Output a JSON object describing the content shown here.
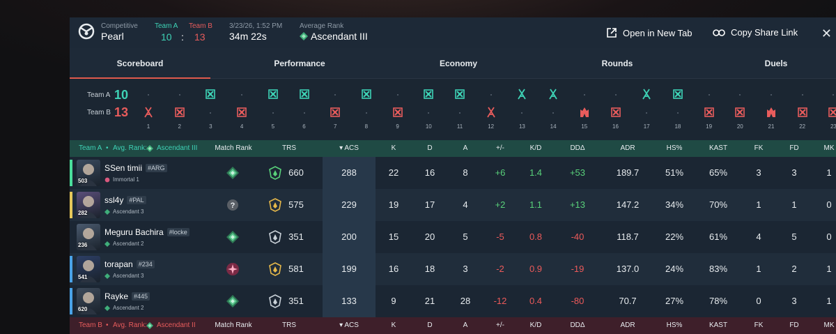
{
  "header": {
    "mode_label": "Competitive",
    "map_name": "Pearl",
    "team_a_label": "Team A",
    "team_b_label": "Team B",
    "team_a_score": "10",
    "colon": ":",
    "team_b_score": "13",
    "datetime": "3/23/26, 1:52 PM",
    "duration": "34m 22s",
    "avg_rank_label": "Average Rank",
    "avg_rank": "Ascendant III",
    "open_tab": "Open in New Tab",
    "copy_link": "Copy Share Link",
    "close": "✕"
  },
  "tabs": [
    "Scoreboard",
    "Performance",
    "Economy",
    "Rounds",
    "Duels"
  ],
  "active_tab": "Scoreboard",
  "rounds": {
    "team_a_label": "Team A",
    "team_b_label": "Team B",
    "team_a_score": "10",
    "team_b_score": "13",
    "winners": [
      "B",
      "B",
      "A",
      "B",
      "A",
      "A",
      "B",
      "A",
      "B",
      "A",
      "A",
      "B",
      "A",
      "A",
      "B",
      "B",
      "A",
      "A",
      "B",
      "B",
      "B",
      "B",
      "B"
    ],
    "win_types": [
      "defuse",
      "elim",
      "elim",
      "elim",
      "elim",
      "elim",
      "elim",
      "elim",
      "elim",
      "elim",
      "elim",
      "defuse",
      "defuse",
      "defuse",
      "spike",
      "elim",
      "defuse",
      "elim",
      "elim",
      "elim",
      "spike",
      "elim",
      "elim"
    ],
    "numbers": [
      "1",
      "2",
      "3",
      "4",
      "5",
      "6",
      "7",
      "8",
      "9",
      "10",
      "11",
      "12",
      "13",
      "14",
      "15",
      "16",
      "17",
      "18",
      "19",
      "20",
      "21",
      "22",
      "23"
    ]
  },
  "table": {
    "team_a_header": {
      "team": "Team A",
      "sep": "•",
      "avg_label": "Avg. Rank:",
      "avg_rank": "Ascendant III"
    },
    "team_b_header": {
      "team": "Team B",
      "sep": "•",
      "avg_label": "Avg. Rank:",
      "avg_rank": "Ascendant II"
    },
    "columns": [
      "Match Rank",
      "TRS",
      "ACS",
      "K",
      "D",
      "A",
      "+/-",
      "K/D",
      "DDΔ",
      "ADR",
      "HS%",
      "KAST",
      "FK",
      "FD",
      "MK"
    ],
    "sort_indicator": "▾",
    "players": [
      {
        "name": "SSen timii",
        "tag": "#ARG",
        "level": "503",
        "rank": "Immortal 1",
        "trs": "660",
        "acs": "288",
        "k": "22",
        "d": "16",
        "a": "8",
        "pm": "+6",
        "kd": "1.4",
        "dd": "+53",
        "adr": "189.7",
        "hs": "51%",
        "kast": "65%",
        "fk": "3",
        "fd": "3",
        "mk": "1",
        "stripe": "#4ade9c",
        "match_rank_icon": "ascendant-rank-icon"
      },
      {
        "name": "ssl4y",
        "tag": "#PAL",
        "level": "282",
        "rank": "Ascendant 3",
        "trs": "575",
        "acs": "229",
        "k": "19",
        "d": "17",
        "a": "4",
        "pm": "+2",
        "kd": "1.1",
        "dd": "+13",
        "adr": "147.2",
        "hs": "34%",
        "kast": "70%",
        "fk": "1",
        "fd": "1",
        "mk": "0",
        "stripe": "#e6c85a",
        "match_rank_icon": "unknown-rank-icon"
      },
      {
        "name": "Meguru Bachira",
        "tag": "#locke",
        "level": "236",
        "rank": "Ascendant 2",
        "trs": "351",
        "acs": "200",
        "k": "15",
        "d": "20",
        "a": "5",
        "pm": "-5",
        "kd": "0.8",
        "dd": "-40",
        "adr": "118.7",
        "hs": "22%",
        "kast": "61%",
        "fk": "4",
        "fd": "5",
        "mk": "0",
        "stripe": "",
        "match_rank_icon": "ascendant-rank-icon"
      },
      {
        "name": "torapan",
        "tag": "#234",
        "level": "541",
        "rank": "Ascendant 3",
        "trs": "581",
        "acs": "199",
        "k": "16",
        "d": "18",
        "a": "3",
        "pm": "-2",
        "kd": "0.9",
        "dd": "-19",
        "adr": "137.0",
        "hs": "24%",
        "kast": "83%",
        "fk": "1",
        "fd": "2",
        "mk": "1",
        "stripe": "#4aa3e8",
        "match_rank_icon": "immortal-rank-icon"
      },
      {
        "name": "Rayke",
        "tag": "#445",
        "level": "620",
        "rank": "Ascendant 2",
        "trs": "351",
        "acs": "133",
        "k": "9",
        "d": "21",
        "a": "28",
        "pm": "-12",
        "kd": "0.4",
        "dd": "-80",
        "adr": "70.7",
        "hs": "27%",
        "kast": "78%",
        "fk": "0",
        "fd": "3",
        "mk": "1",
        "stripe": "#4aa3e8",
        "match_rank_icon": "ascendant-rank-icon"
      }
    ]
  },
  "colors": {
    "team_a": "#3ed3b6",
    "team_b": "#e85c5c",
    "positive": "#59d17a",
    "negative": "#ec5a5a",
    "tab_active": "#e05a4d"
  }
}
